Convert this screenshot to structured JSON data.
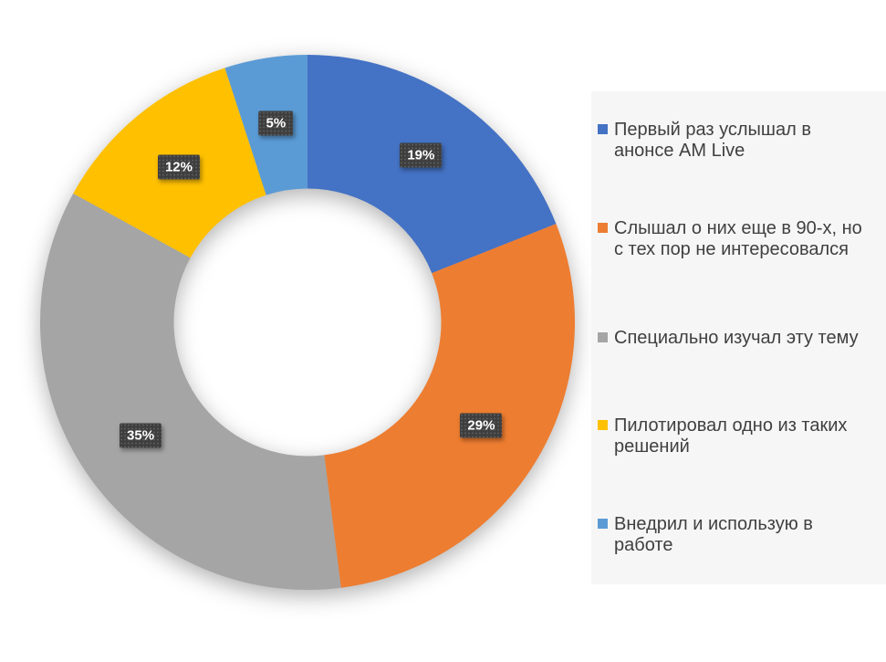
{
  "chart_data": {
    "type": "pie",
    "subtype": "donut",
    "title": "",
    "legend_position": "right",
    "donut_hole_ratio": 0.5,
    "categories": [
      "Первый раз услышал в анонсе AM Live",
      "Слышал о них еще в 90-х, но с тех пор не интересовался",
      "Специально изучал эту тему",
      "Пилотировал одно из таких решений",
      "Внедрил и использую в работе"
    ],
    "values": [
      19,
      29,
      35,
      12,
      5
    ],
    "data_labels": [
      "19%",
      "29%",
      "35%",
      "12%",
      "5%"
    ],
    "colors": [
      "#4472C4",
      "#ED7D31",
      "#A5A5A5",
      "#FFC000",
      "#5B9BD5"
    ],
    "data_label_style": {
      "background": "#3E3E3E",
      "text_color": "#FFFFFF"
    },
    "legend_background": "#F6F6F6",
    "page_background": "#FFFFFF"
  }
}
